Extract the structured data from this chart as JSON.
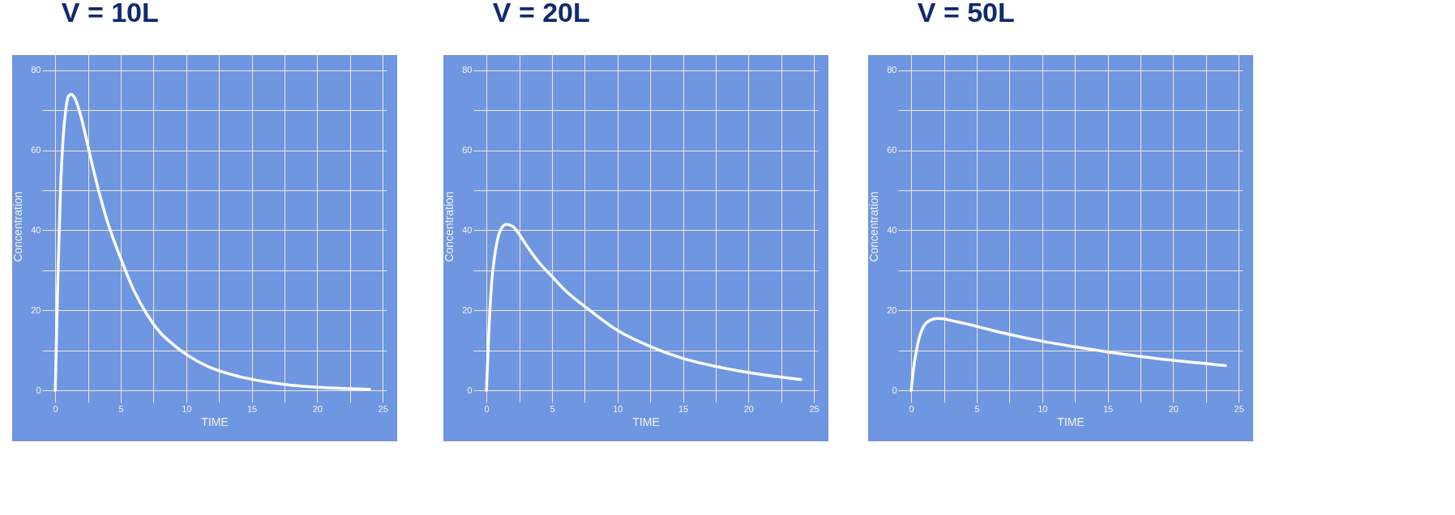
{
  "chart_data": [
    {
      "type": "line",
      "title": "V = 10L",
      "xlabel": "TIME",
      "ylabel": "Concentration",
      "grid": true,
      "xlim": [
        -1,
        25.3
      ],
      "ylim": [
        -3,
        85
      ],
      "xticks": [
        0,
        {
          "value": 2.5,
          "label": null
        },
        5,
        {
          "value": 7.5,
          "label": null
        },
        10,
        {
          "value": 12.5,
          "label": null
        },
        15,
        {
          "value": 17.5,
          "label": null
        },
        20,
        {
          "value": 22.5,
          "label": null
        },
        25
      ],
      "yticks": [
        0,
        {
          "value": 10,
          "label": null
        },
        20,
        {
          "value": 30,
          "label": null
        },
        40,
        {
          "value": 50,
          "label": null
        },
        60,
        {
          "value": 70,
          "label": null
        },
        80
      ],
      "x": [
        0,
        0.2,
        0.4,
        0.6,
        0.8,
        1,
        1.2,
        1.5,
        2,
        2.5,
        3,
        4,
        5,
        6,
        7,
        8,
        9,
        10,
        12,
        14,
        16,
        18,
        20,
        22,
        24
      ],
      "series": [
        {
          "color": "#ffffff",
          "values": [
            0,
            28,
            50,
            63,
            70,
            73.5,
            74,
            73,
            68,
            61,
            54,
            42,
            33,
            25,
            19,
            14.5,
            11.5,
            9,
            5.5,
            3.5,
            2.2,
            1.3,
            0.8,
            0.5,
            0.3
          ]
        }
      ]
    },
    {
      "type": "line",
      "title": "V = 20L",
      "xlabel": "TIME",
      "ylabel": "Concentration",
      "grid": true,
      "xlim": [
        -1,
        25.3
      ],
      "ylim": [
        -3,
        85
      ],
      "xticks": [
        0,
        {
          "value": 2.5,
          "label": null
        },
        5,
        {
          "value": 7.5,
          "label": null
        },
        10,
        {
          "value": 12.5,
          "label": null
        },
        15,
        {
          "value": 17.5,
          "label": null
        },
        20,
        {
          "value": 22.5,
          "label": null
        },
        25
      ],
      "yticks": [
        0,
        {
          "value": 10,
          "label": null
        },
        20,
        {
          "value": 30,
          "label": null
        },
        40,
        {
          "value": 50,
          "label": null
        },
        60,
        {
          "value": 70,
          "label": null
        },
        80
      ],
      "x": [
        0,
        0.2,
        0.4,
        0.6,
        0.8,
        1,
        1.5,
        2,
        2.5,
        3,
        4,
        5,
        6,
        7.5,
        10,
        12.5,
        15,
        17.5,
        20,
        22.5,
        24
      ],
      "series": [
        {
          "color": "#ffffff",
          "values": [
            0,
            16,
            27,
            33,
            37,
            39.5,
            41.5,
            41,
            39,
            36.5,
            32,
            28.5,
            25,
            21,
            15,
            11,
            8,
            6,
            4.5,
            3.3,
            2.7
          ]
        }
      ]
    },
    {
      "type": "line",
      "title": "V = 50L",
      "xlabel": "TIME",
      "ylabel": "Concentration",
      "grid": true,
      "xlim": [
        -1,
        25.3
      ],
      "ylim": [
        -3,
        85
      ],
      "xticks": [
        0,
        {
          "value": 2.5,
          "label": null
        },
        5,
        {
          "value": 7.5,
          "label": null
        },
        10,
        {
          "value": 12.5,
          "label": null
        },
        15,
        {
          "value": 17.5,
          "label": null
        },
        20,
        {
          "value": 22.5,
          "label": null
        },
        25
      ],
      "yticks": [
        0,
        {
          "value": 10,
          "label": null
        },
        20,
        {
          "value": 30,
          "label": null
        },
        40,
        {
          "value": 50,
          "label": null
        },
        60,
        {
          "value": 70,
          "label": null
        },
        80
      ],
      "x": [
        0,
        0.2,
        0.4,
        0.6,
        0.8,
        1,
        1.5,
        2,
        2.5,
        3,
        4,
        5,
        7.5,
        10,
        12.5,
        15,
        17.5,
        20,
        22.5,
        24
      ],
      "series": [
        {
          "color": "#ffffff",
          "values": [
            0,
            6,
            10,
            13,
            15,
            16.3,
            17.6,
            18,
            17.9,
            17.5,
            16.8,
            16,
            14,
            12.3,
            10.9,
            9.6,
            8.5,
            7.5,
            6.7,
            6.2
          ]
        }
      ]
    }
  ]
}
